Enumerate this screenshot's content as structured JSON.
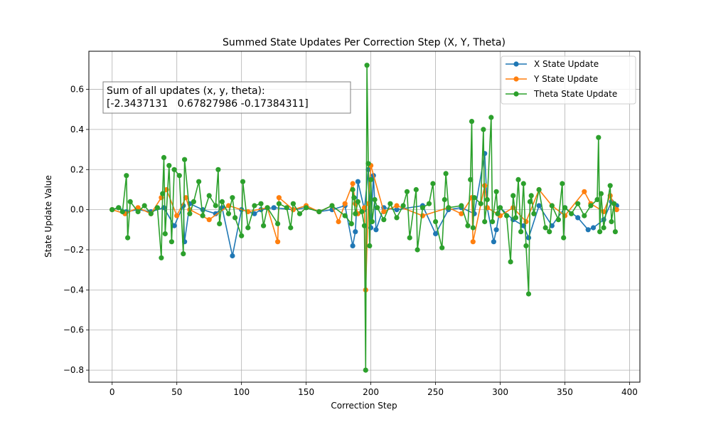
{
  "chart_data": {
    "type": "line",
    "title": "Summed State Updates Per Correction Step (X, Y, Theta)",
    "xlabel": "Correction Step",
    "ylabel": "State Update Value",
    "xlim": [
      -18,
      408
    ],
    "ylim": [
      -0.86,
      0.79
    ],
    "xticks": [
      0,
      50,
      100,
      150,
      200,
      250,
      300,
      350,
      400
    ],
    "yticks": [
      -0.8,
      -0.6,
      -0.4,
      -0.2,
      0.0,
      0.2,
      0.4,
      0.6
    ],
    "ytick_labels": [
      "−0.8",
      "−0.6",
      "−0.4",
      "−0.2",
      "0.0",
      "0.2",
      "0.4",
      "0.6"
    ],
    "grid": true,
    "legend_position": "top-right",
    "annotation": {
      "line1": "Sum of all updates (x, y, theta):",
      "line2": "[-2.3437131   0.67827986 -0.17384311]"
    },
    "series": [
      {
        "name": "X State Update",
        "color": "#1f77b4",
        "x": [
          0,
          5,
          11,
          20,
          30,
          40,
          48,
          55,
          56,
          60,
          70,
          80,
          85,
          93,
          100,
          110,
          115,
          125,
          140,
          150,
          160,
          170,
          180,
          186,
          188,
          190,
          195,
          198,
          200,
          202,
          204,
          210,
          220,
          240,
          250,
          260,
          270,
          280,
          288,
          290,
          295,
          297,
          300,
          310,
          318,
          322,
          330,
          340,
          350,
          360,
          368,
          372,
          380,
          386,
          390
        ],
        "y": [
          0,
          0.01,
          -0.01,
          0,
          -0.01,
          0.01,
          -0.08,
          0.02,
          -0.16,
          0.03,
          0,
          -0.02,
          0.01,
          -0.23,
          0,
          -0.02,
          0,
          0.01,
          0,
          0.01,
          -0.01,
          0,
          0.02,
          -0.18,
          -0.11,
          0.14,
          0,
          0.2,
          -0.09,
          0.17,
          -0.1,
          0.01,
          0,
          0.02,
          -0.12,
          0,
          0.01,
          -0.02,
          0.28,
          0.01,
          -0.16,
          -0.1,
          0.01,
          -0.05,
          -0.08,
          -0.14,
          0.02,
          -0.08,
          0.01,
          -0.04,
          -0.1,
          -0.09,
          -0.05,
          0.04,
          0.02
        ]
      },
      {
        "name": "Y State Update",
        "color": "#ff7f0e",
        "x": [
          0,
          10,
          20,
          30,
          38,
          42,
          50,
          57,
          60,
          75,
          90,
          105,
          120,
          128,
          129,
          140,
          150,
          160,
          170,
          175,
          180,
          186,
          188,
          190,
          195,
          196,
          198,
          200,
          210,
          220,
          240,
          260,
          270,
          278,
          279,
          288,
          290,
          300,
          310,
          320,
          330,
          340,
          350,
          365,
          370,
          380,
          385,
          390
        ],
        "y": [
          0,
          -0.02,
          0.01,
          -0.02,
          0.06,
          0.1,
          -0.03,
          0.06,
          0,
          -0.05,
          0.02,
          -0.01,
          0.01,
          -0.16,
          0.06,
          0,
          0.02,
          -0.01,
          0.02,
          -0.06,
          0.03,
          0.13,
          0.03,
          -0.02,
          0.01,
          -0.4,
          0.03,
          0.22,
          -0.01,
          0.02,
          -0.03,
          0.01,
          -0.02,
          0.06,
          -0.16,
          0.12,
          0.01,
          -0.03,
          0.01,
          -0.06,
          0.1,
          0.02,
          -0.03,
          0.09,
          0.03,
          -0.01,
          0.07,
          0
        ]
      },
      {
        "name": "Theta State Update",
        "color": "#2ca02c",
        "x": [
          0,
          5,
          8,
          11,
          12,
          14,
          20,
          25,
          30,
          35,
          38,
          39,
          40,
          41,
          44,
          46,
          48,
          52,
          55,
          56,
          60,
          63,
          67,
          70,
          75,
          80,
          82,
          83,
          85,
          90,
          93,
          95,
          100,
          101,
          105,
          110,
          115,
          117,
          120,
          128,
          129,
          135,
          138,
          140,
          145,
          150,
          160,
          170,
          180,
          185,
          186,
          187,
          188,
          190,
          193,
          195,
          196,
          197,
          198,
          199,
          200,
          201,
          203,
          205,
          210,
          215,
          220,
          225,
          228,
          230,
          235,
          236,
          240,
          245,
          248,
          250,
          255,
          257,
          258,
          260,
          270,
          275,
          277,
          278,
          279,
          280,
          285,
          287,
          288,
          290,
          293,
          294,
          297,
          298,
          300,
          305,
          308,
          310,
          312,
          314,
          316,
          318,
          320,
          322,
          323,
          324,
          326,
          330,
          335,
          338,
          340,
          345,
          348,
          349,
          350,
          355,
          360,
          365,
          370,
          375,
          376,
          377,
          378,
          380,
          385,
          386,
          388,
          389
        ],
        "y": [
          0,
          0.01,
          -0.01,
          0.17,
          -0.14,
          0.04,
          -0.01,
          0.02,
          -0.02,
          0.01,
          -0.24,
          0.08,
          0.26,
          -0.12,
          0.22,
          -0.16,
          0.2,
          0.17,
          -0.22,
          0.25,
          -0.02,
          0.04,
          0.14,
          -0.03,
          0.07,
          0.02,
          0.2,
          -0.07,
          0.04,
          -0.02,
          0.06,
          -0.04,
          -0.13,
          0.14,
          -0.09,
          0.02,
          0.03,
          -0.08,
          0.01,
          -0.07,
          0.03,
          0.01,
          -0.09,
          0.03,
          -0.02,
          0.01,
          -0.01,
          0.02,
          -0.03,
          -0.07,
          0.1,
          0.06,
          -0.02,
          0.04,
          -0.01,
          -0.08,
          -0.8,
          0.72,
          0.23,
          -0.18,
          0.15,
          -0.06,
          0.05,
          0.01,
          -0.05,
          0.03,
          -0.04,
          0.02,
          0.09,
          -0.14,
          0.1,
          -0.2,
          0.01,
          0.03,
          0.13,
          -0.06,
          -0.19,
          0.05,
          0.18,
          0.01,
          0.02,
          -0.08,
          0.15,
          0.44,
          -0.09,
          0.06,
          0.03,
          0.4,
          -0.06,
          0.05,
          0.46,
          -0.06,
          0.09,
          -0.02,
          0.01,
          -0.03,
          -0.26,
          0.07,
          -0.04,
          0.15,
          -0.11,
          0.13,
          -0.18,
          -0.42,
          0.04,
          0.07,
          -0.02,
          0.1,
          -0.09,
          -0.11,
          0.02,
          -0.05,
          0.13,
          -0.14,
          0.01,
          -0.02,
          0.03,
          -0.03,
          0.02,
          0.05,
          0.36,
          -0.11,
          0.08,
          -0.09,
          0.12,
          -0.06,
          0.03,
          -0.11
        ]
      }
    ]
  }
}
